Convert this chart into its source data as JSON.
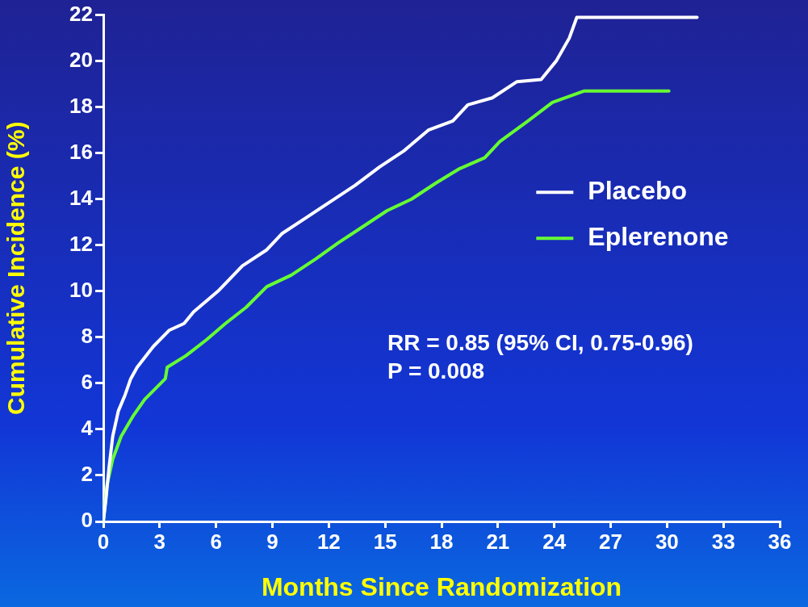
{
  "chart_data": {
    "type": "line",
    "xlabel": "Months Since Randomization",
    "ylabel": "Cumulative Incidence (%)",
    "xlim": [
      0,
      36
    ],
    "xticks": [
      0,
      3,
      6,
      9,
      12,
      15,
      18,
      21,
      24,
      27,
      30,
      33,
      36
    ],
    "ylim": [
      0,
      22
    ],
    "yticks": [
      0,
      2,
      4,
      6,
      8,
      10,
      12,
      14,
      16,
      18,
      20,
      22
    ],
    "grid": false,
    "legend": "right",
    "marker": "none",
    "line_style": "solid",
    "series": [
      {
        "name": "Placebo",
        "color": "#ffffff",
        "x": [
          0,
          0.13,
          0.3,
          0.5,
          0.8,
          1.16,
          1.46,
          1.8,
          2.66,
          3.5,
          4.3,
          4.8,
          6.1,
          7.4,
          8.7,
          9.5,
          10.8,
          12.1,
          13.4,
          14.7,
          16,
          17.3,
          18.6,
          19.4,
          20.7,
          22,
          23.3,
          24.1,
          24.8,
          25.2,
          31.6
        ],
        "values": [
          0,
          0.9,
          2.3,
          3.7,
          4.8,
          5.5,
          6.2,
          6.7,
          7.6,
          8.3,
          8.6,
          9.1,
          10,
          11.1,
          11.8,
          12.5,
          13.2,
          13.9,
          14.6,
          15.4,
          16.1,
          17,
          17.4,
          18.1,
          18.4,
          19.1,
          19.2,
          20,
          21,
          21.9,
          21.9
        ]
      },
      {
        "name": "Eplerenone",
        "color": "#66ff33",
        "x": [
          0,
          0.2,
          0.5,
          0.95,
          1.6,
          2.2,
          3.3,
          3.4,
          4.4,
          5.5,
          6.5,
          7.6,
          8.7,
          10,
          11.3,
          12.5,
          13.8,
          15.1,
          16.4,
          17.7,
          18.9,
          20.3,
          21.1,
          22.6,
          23.9,
          25.6,
          30.1
        ],
        "values": [
          0,
          1.6,
          2.7,
          3.7,
          4.6,
          5.3,
          6.2,
          6.7,
          7.2,
          7.9,
          8.6,
          9.3,
          10.2,
          10.7,
          11.4,
          12.1,
          12.8,
          13.5,
          14,
          14.7,
          15.3,
          15.8,
          16.5,
          17.4,
          18.2,
          18.7,
          18.7
        ]
      }
    ],
    "annotations": [
      "RR = 0.85 (95% CI, 0.75-0.96)",
      "P = 0.008"
    ]
  }
}
